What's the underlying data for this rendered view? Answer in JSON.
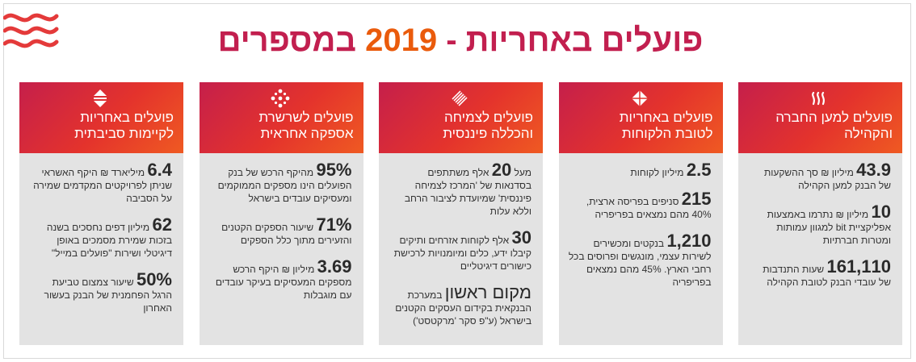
{
  "title": {
    "part1": "פועלים באחריות -",
    "year": "2019",
    "part2": "במספרים"
  },
  "columns": [
    {
      "title_lines": [
        "פועלים למען החברה",
        "והקהילה"
      ],
      "icon": "flame-icon",
      "stats": [
        {
          "num": "43.9",
          "lead": "מיליון ₪ סך ההשקעות",
          "rest": "של הבנק למען הקהילה"
        },
        {
          "num": "10",
          "lead": "מיליון ₪ נתרמו באמצעות",
          "rest": "אפליקציית bit למגוון עמותות ומטרות חברתיות"
        },
        {
          "num": "161,110",
          "lead": "שעות התנדבות",
          "rest": "של עובדי הבנק לטובת הקהילה"
        }
      ]
    },
    {
      "title_lines": [
        "פועלים באחריות",
        "לטובת הלקוחות"
      ],
      "icon": "quad-diamond-icon",
      "stats": [
        {
          "num": "2.5",
          "lead": "מיליון לקוחות",
          "rest": ""
        },
        {
          "num": "215",
          "lead": "סניפים בפריסה ארצית,",
          "rest": "40% מהם נמצאים בפריפריה"
        },
        {
          "num": "1,210",
          "lead": "בנקטים ומכשירים",
          "rest": "לשירות עצמי, מונגשים ופרוסים בכל רחבי הארץ. 45% מהם נמצאים בפריפריה"
        }
      ]
    },
    {
      "title_lines": [
        "פועלים לצמיחה",
        "והכללה פיננסית"
      ],
      "icon": "striped-diamond-icon",
      "stats": [
        {
          "num": "20",
          "lead": "אלף משתתפים",
          "prefix": "מעל",
          "rest": "בסדנאות של 'המרכז לצמיחה פיננסית' שמיועדת לציבור הרחב וללא עלות"
        },
        {
          "num": "30",
          "lead": "אלף לקוחות אזרחים ותיקים",
          "rest": "קיבלו ידע, כלים ומיומנויות לרכישת כישורים דיגיטליים"
        },
        {
          "num": "מקום ראשון",
          "lead": "במערכת",
          "rest": "הבנקאית בקידום העסקים הקטנים בישראל (ע\"פ סקר 'מרקטסט')"
        }
      ]
    },
    {
      "title_lines": [
        "פועלים לשרשרת",
        "אספקה אחראית"
      ],
      "icon": "dot-cluster-icon",
      "stats": [
        {
          "num": "95%",
          "lead": "מהיקף הרכש של בנק",
          "rest": "הפועלים הינו מספקים הממוקמים ומעסיקים עובדים בישראל"
        },
        {
          "num": "71%",
          "lead": "שיעור הספקים הקטנים",
          "rest": "והזעירים מתוך כלל הספקים"
        },
        {
          "num": "3.69",
          "lead": "מיליון ₪ היקף הרכש",
          "rest": "מספקים המעסיקים בעיקר עובדים עם מוגבלות"
        }
      ]
    },
    {
      "title_lines": [
        "פועלים באחריות",
        "לקיימות סביבתית"
      ],
      "icon": "arrows-up-down-icon",
      "stats": [
        {
          "num": "6.4",
          "lead": "מיליארד ₪ היקף האשראי",
          "rest": "שניתן לפרויקטים המקדמים שמירה על הסביבה"
        },
        {
          "num": "62",
          "lead": "מיליון דפים נחסכים בשנה",
          "rest": "בזכות שמירת מסמכים באופן דיגיטלי ושירות \"פועלים במייל\""
        },
        {
          "num": "50%",
          "lead": "שיעור צמצום טביעת",
          "rest": "הרגל הפחמנית של הבנק בעשור האחרון"
        }
      ]
    }
  ]
}
